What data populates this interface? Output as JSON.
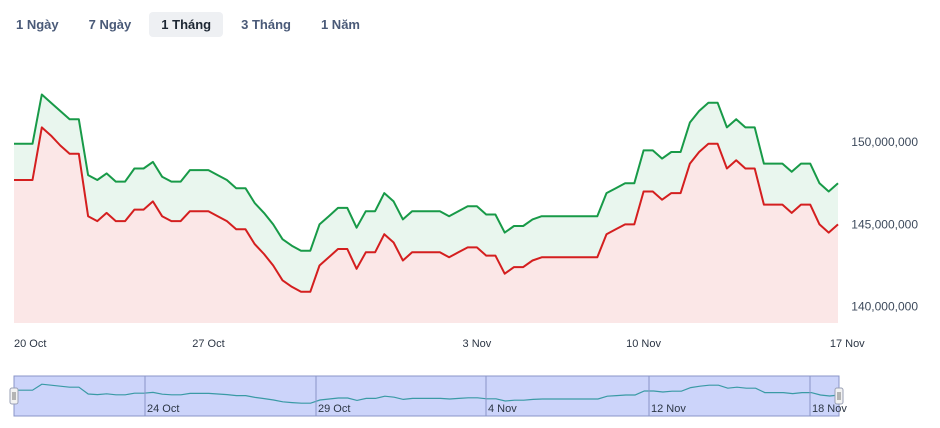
{
  "tabs": [
    "1 Ngày",
    "7 Ngày",
    "1 Tháng",
    "3 Tháng",
    "1 Năm"
  ],
  "active_tab": 2,
  "colors": {
    "buy_line": "#189a48",
    "buy_fill": "#e9f6ee",
    "sell_line": "#d41f1f",
    "sell_fill": "#fbe7e7",
    "navigator_fill": "#ccd4fa",
    "navigator_line": "#3a9aa5",
    "navigator_outline": "#8a95c8"
  },
  "chart_data": {
    "type": "area",
    "ylim": [
      139000000,
      155000000
    ],
    "y_ticks": [
      140000000,
      145000000,
      150000000
    ],
    "y_tick_labels": [
      "140,000,000",
      "145,000,000",
      "150,000,000"
    ],
    "x_ticks": [
      {
        "index": 0,
        "label": "20 Oct"
      },
      {
        "index": 21,
        "label": "27 Oct"
      },
      {
        "index": 50,
        "label": "3 Nov"
      },
      {
        "index": 68,
        "label": "10 Nov"
      },
      {
        "index": 90,
        "label": "17 Nov"
      }
    ],
    "series": [
      {
        "values": [
          149900000,
          149900000,
          149900000,
          152900000,
          152400000,
          151900000,
          151400000,
          151400000,
          148000000,
          147700000,
          148100000,
          147600000,
          147600000,
          148400000,
          148400000,
          148800000,
          147900000,
          147600000,
          147600000,
          148300000,
          148300000,
          148300000,
          148000000,
          147700000,
          147200000,
          147200000,
          146300000,
          145700000,
          145000000,
          144100000,
          143700000,
          143400000,
          143400000,
          145000000,
          145500000,
          146000000,
          146000000,
          144800000,
          145800000,
          145800000,
          146900000,
          146400000,
          145300000,
          145800000,
          145800000,
          145800000,
          145800000,
          145500000,
          145800000,
          146100000,
          146100000,
          145600000,
          145600000,
          144500000,
          144900000,
          144900000,
          145300000,
          145500000,
          145500000,
          145500000,
          145500000,
          145500000,
          145500000,
          145500000,
          146900000,
          147200000,
          147500000,
          147500000,
          149500000,
          149500000,
          149000000,
          149400000,
          149400000,
          151200000,
          151900000,
          152400000,
          152400000,
          150900000,
          151400000,
          150900000,
          150900000,
          148700000,
          148700000,
          148700000,
          148200000,
          148700000,
          148700000,
          147500000,
          147000000,
          147500000
        ]
      },
      {
        "values": [
          147700000,
          147700000,
          147700000,
          150900000,
          150400000,
          149800000,
          149300000,
          149300000,
          145500000,
          145200000,
          145700000,
          145200000,
          145200000,
          145900000,
          145900000,
          146400000,
          145500000,
          145200000,
          145200000,
          145800000,
          145800000,
          145800000,
          145500000,
          145200000,
          144700000,
          144700000,
          143800000,
          143200000,
          142500000,
          141600000,
          141200000,
          140900000,
          140900000,
          142500000,
          143000000,
          143500000,
          143500000,
          142300000,
          143300000,
          143300000,
          144400000,
          143900000,
          142800000,
          143300000,
          143300000,
          143300000,
          143300000,
          143000000,
          143300000,
          143600000,
          143600000,
          143100000,
          143100000,
          142000000,
          142400000,
          142400000,
          142800000,
          143000000,
          143000000,
          143000000,
          143000000,
          143000000,
          143000000,
          143000000,
          144400000,
          144700000,
          145000000,
          145000000,
          147000000,
          147000000,
          146500000,
          146900000,
          146900000,
          148700000,
          149400000,
          149900000,
          149900000,
          148400000,
          148900000,
          148400000,
          148400000,
          146200000,
          146200000,
          146200000,
          145700000,
          146200000,
          146200000,
          145000000,
          144500000,
          145000000
        ]
      }
    ]
  },
  "navigator": {
    "labels": [
      "24 Oct",
      "29 Oct",
      "4 Nov",
      "12 Nov",
      "18 Nov"
    ],
    "values": [
      149900000,
      149900000,
      149900000,
      152900000,
      152400000,
      151900000,
      151400000,
      151400000,
      148000000,
      147700000,
      148100000,
      147600000,
      147600000,
      148400000,
      148400000,
      148800000,
      147900000,
      147600000,
      147600000,
      148300000,
      148300000,
      148300000,
      148000000,
      147700000,
      147200000,
      147200000,
      146300000,
      145700000,
      145000000,
      144100000,
      143700000,
      143400000,
      143400000,
      145000000,
      145500000,
      146000000,
      146000000,
      144800000,
      145800000,
      145800000,
      146900000,
      146400000,
      145300000,
      145800000,
      145800000,
      145800000,
      145800000,
      145500000,
      145800000,
      146100000,
      146100000,
      145600000,
      145600000,
      144500000,
      144900000,
      144900000,
      145300000,
      145500000,
      145500000,
      145500000,
      145500000,
      145500000,
      145500000,
      145500000,
      146900000,
      147200000,
      147500000,
      147500000,
      149500000,
      149500000,
      149000000,
      149400000,
      149400000,
      151200000,
      151900000,
      152400000,
      152400000,
      150900000,
      151400000,
      150900000,
      150900000,
      148700000,
      148700000,
      148700000,
      148200000,
      148700000,
      148700000,
      147500000,
      147000000,
      147500000
    ]
  }
}
